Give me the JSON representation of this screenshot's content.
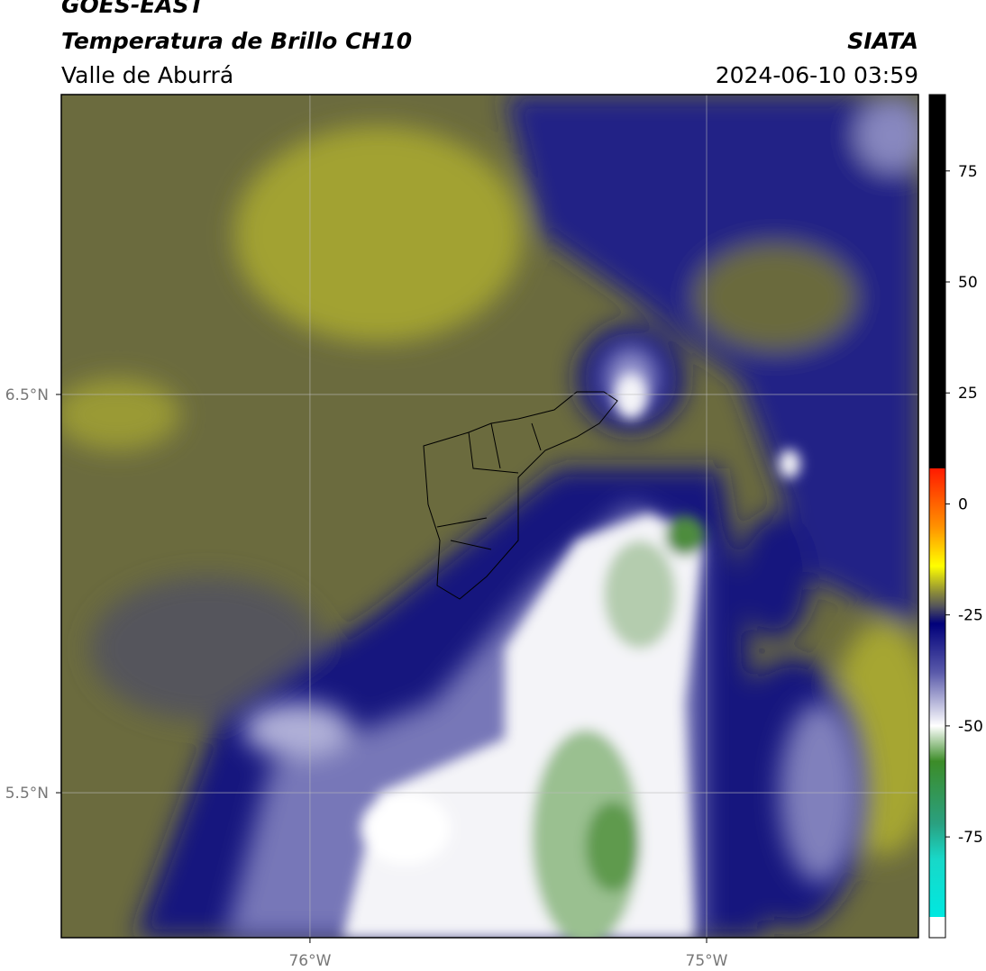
{
  "chart_data": {
    "type": "map",
    "title": "GOES-EAST",
    "subtitle": "Temperatura de Brillo CH10",
    "region": "Valle de Aburrá",
    "source": "SIATA",
    "datetime": "2024-06-10 03:59",
    "xlim": [
      -76.627,
      -74.466
    ],
    "xticks": [
      {
        "value": -76,
        "label": "76°W"
      },
      {
        "value": -75,
        "label": "75°W"
      }
    ],
    "ylim": [
      5.136,
      7.253
    ],
    "yticks": [
      {
        "value": 5.5,
        "label": "5.5°N"
      },
      {
        "value": 6.5,
        "label": "6.5°N"
      }
    ],
    "grid": true,
    "colorbar": {
      "lim": [
        -97.7,
        92.2
      ],
      "ticks": [
        75,
        50,
        25,
        0,
        -25,
        -50,
        -75
      ],
      "stops": [
        {
          "value": 92.2,
          "color": "#000000"
        },
        {
          "value": 8,
          "color": "#000000"
        },
        {
          "value": 8,
          "color": "#ff1a00"
        },
        {
          "value": -5,
          "color": "#ff9000"
        },
        {
          "value": -14,
          "color": "#ffff00"
        },
        {
          "value": -20,
          "color": "#8a8a3a"
        },
        {
          "value": -23,
          "color": "#55555a"
        },
        {
          "value": -27,
          "color": "#00007a"
        },
        {
          "value": -38,
          "color": "#5a5aaa"
        },
        {
          "value": -50,
          "color": "#ffffff"
        },
        {
          "value": -58,
          "color": "#3c8c28"
        },
        {
          "value": -72,
          "color": "#2aa080"
        },
        {
          "value": -80,
          "color": "#18d8c8"
        },
        {
          "value": -93,
          "color": "#00e8e0"
        },
        {
          "value": -93,
          "color": "#ffffff"
        },
        {
          "value": -97.7,
          "color": "#ffffff"
        }
      ]
    }
  }
}
